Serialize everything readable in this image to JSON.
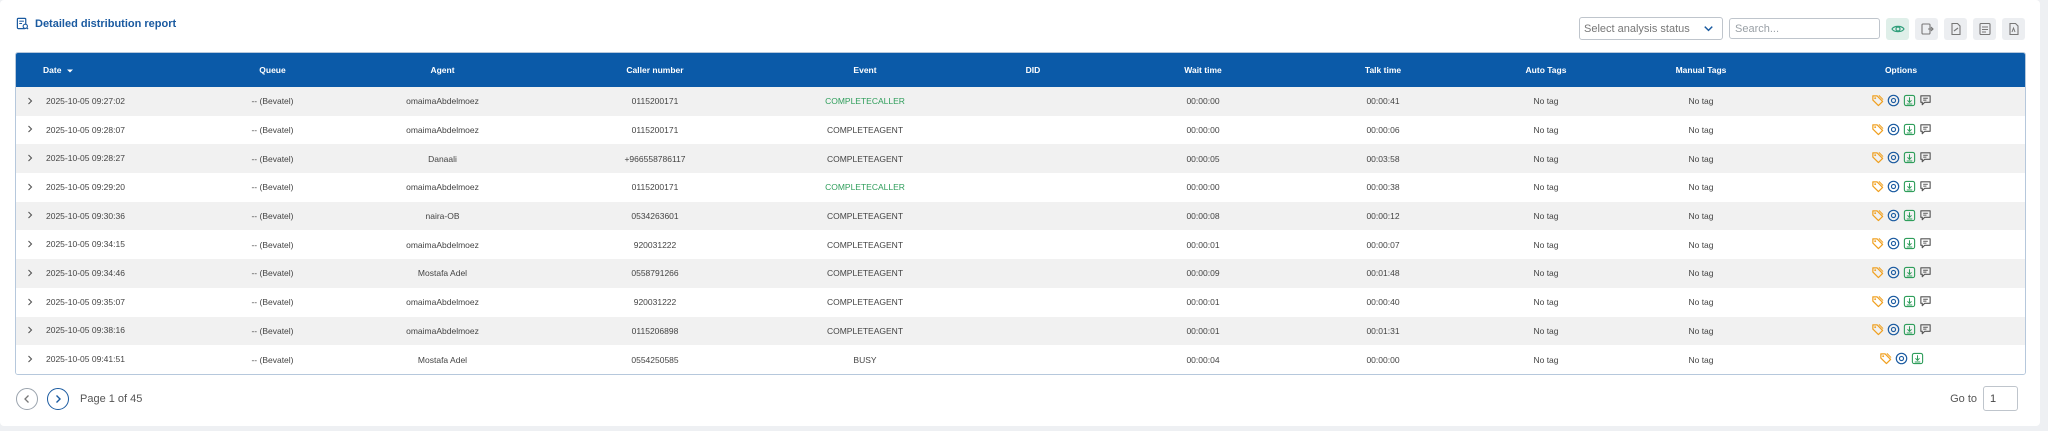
{
  "header": {
    "title": "Detailed distribution report"
  },
  "toolbar": {
    "analysis_status_placeholder": "Select analysis status",
    "search_placeholder": "Search...",
    "buttons": [
      "eye-icon",
      "export-icon",
      "file-icon",
      "document-icon",
      "pdf-icon"
    ]
  },
  "table": {
    "columns": [
      "Date",
      "Queue",
      "Agent",
      "Caller number",
      "Event",
      "DID",
      "Wait time",
      "Talk time",
      "Auto Tags",
      "Manual Tags",
      "Options"
    ],
    "rows": [
      {
        "date": "2025-10-05 09:27:02",
        "queue": "-- (Bevatel)",
        "agent": "omaimaAbdelmoez",
        "caller": "0115200171",
        "event": "COMPLETECALLER",
        "did": "",
        "wait": "00:00:00",
        "talk": "00:00:41",
        "auto_tags": "No tag",
        "manual_tags": "No tag",
        "has_transcript": true
      },
      {
        "date": "2025-10-05 09:28:07",
        "queue": "-- (Bevatel)",
        "agent": "omaimaAbdelmoez",
        "caller": "0115200171",
        "event": "COMPLETEAGENT",
        "did": "",
        "wait": "00:00:00",
        "talk": "00:00:06",
        "auto_tags": "No tag",
        "manual_tags": "No tag",
        "has_transcript": true
      },
      {
        "date": "2025-10-05 09:28:27",
        "queue": "-- (Bevatel)",
        "agent": "Danaali",
        "caller": "+966558786117",
        "event": "COMPLETEAGENT",
        "did": "",
        "wait": "00:00:05",
        "talk": "00:03:58",
        "auto_tags": "No tag",
        "manual_tags": "No tag",
        "has_transcript": true
      },
      {
        "date": "2025-10-05 09:29:20",
        "queue": "-- (Bevatel)",
        "agent": "omaimaAbdelmoez",
        "caller": "0115200171",
        "event": "COMPLETECALLER",
        "did": "",
        "wait": "00:00:00",
        "talk": "00:00:38",
        "auto_tags": "No tag",
        "manual_tags": "No tag",
        "has_transcript": true
      },
      {
        "date": "2025-10-05 09:30:36",
        "queue": "-- (Bevatel)",
        "agent": "naira-OB",
        "caller": "0534263601",
        "event": "COMPLETEAGENT",
        "did": "",
        "wait": "00:00:08",
        "talk": "00:00:12",
        "auto_tags": "No tag",
        "manual_tags": "No tag",
        "has_transcript": true
      },
      {
        "date": "2025-10-05 09:34:15",
        "queue": "-- (Bevatel)",
        "agent": "omaimaAbdelmoez",
        "caller": "920031222",
        "event": "COMPLETEAGENT",
        "did": "",
        "wait": "00:00:01",
        "talk": "00:00:07",
        "auto_tags": "No tag",
        "manual_tags": "No tag",
        "has_transcript": true
      },
      {
        "date": "2025-10-05 09:34:46",
        "queue": "-- (Bevatel)",
        "agent": "Mostafa Adel",
        "caller": "0558791266",
        "event": "COMPLETEAGENT",
        "did": "",
        "wait": "00:00:09",
        "talk": "00:01:48",
        "auto_tags": "No tag",
        "manual_tags": "No tag",
        "has_transcript": true
      },
      {
        "date": "2025-10-05 09:35:07",
        "queue": "-- (Bevatel)",
        "agent": "omaimaAbdelmoez",
        "caller": "920031222",
        "event": "COMPLETEAGENT",
        "did": "",
        "wait": "00:00:01",
        "talk": "00:00:40",
        "auto_tags": "No tag",
        "manual_tags": "No tag",
        "has_transcript": true
      },
      {
        "date": "2025-10-05 09:38:16",
        "queue": "-- (Bevatel)",
        "agent": "omaimaAbdelmoez",
        "caller": "0115206898",
        "event": "COMPLETEAGENT",
        "did": "",
        "wait": "00:00:01",
        "talk": "00:01:31",
        "auto_tags": "No tag",
        "manual_tags": "No tag",
        "has_transcript": true
      },
      {
        "date": "2025-10-05 09:41:51",
        "queue": "-- (Bevatel)",
        "agent": "Mostafa Adel",
        "caller": "0554250585",
        "event": "BUSY",
        "did": "",
        "wait": "00:00:04",
        "talk": "00:00:00",
        "auto_tags": "No tag",
        "manual_tags": "No tag",
        "has_transcript": false
      }
    ]
  },
  "pagination": {
    "page_text": "Page 1 of 45",
    "goto_label": "Go to",
    "goto_value": "1"
  },
  "colors": {
    "header_bg": "#0b5aa8",
    "accent": "#1a5aa0",
    "event_green": "#2f9e5b",
    "tag_orange": "#f0a020",
    "download_green": "#2f9e5b"
  }
}
